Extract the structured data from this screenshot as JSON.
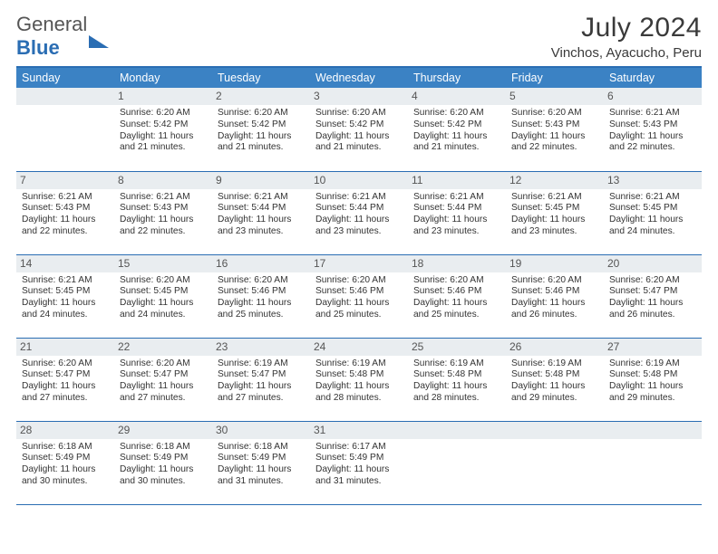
{
  "logo": {
    "word1": "General",
    "word2": "Blue"
  },
  "title": "July 2024",
  "location": "Vinchos, Ayacucho, Peru",
  "colors": {
    "header_bg": "#3b82c4",
    "divider": "#2a6db3",
    "daynum_bg": "#e9edf0",
    "text": "#333333",
    "logo_accent": "#2a6db3"
  },
  "daysOfWeek": [
    "Sunday",
    "Monday",
    "Tuesday",
    "Wednesday",
    "Thursday",
    "Friday",
    "Saturday"
  ],
  "weeks": [
    [
      null,
      {
        "n": "1",
        "sr": "6:20 AM",
        "ss": "5:42 PM",
        "dl": "11 hours and 21 minutes."
      },
      {
        "n": "2",
        "sr": "6:20 AM",
        "ss": "5:42 PM",
        "dl": "11 hours and 21 minutes."
      },
      {
        "n": "3",
        "sr": "6:20 AM",
        "ss": "5:42 PM",
        "dl": "11 hours and 21 minutes."
      },
      {
        "n": "4",
        "sr": "6:20 AM",
        "ss": "5:42 PM",
        "dl": "11 hours and 21 minutes."
      },
      {
        "n": "5",
        "sr": "6:20 AM",
        "ss": "5:43 PM",
        "dl": "11 hours and 22 minutes."
      },
      {
        "n": "6",
        "sr": "6:21 AM",
        "ss": "5:43 PM",
        "dl": "11 hours and 22 minutes."
      }
    ],
    [
      {
        "n": "7",
        "sr": "6:21 AM",
        "ss": "5:43 PM",
        "dl": "11 hours and 22 minutes."
      },
      {
        "n": "8",
        "sr": "6:21 AM",
        "ss": "5:43 PM",
        "dl": "11 hours and 22 minutes."
      },
      {
        "n": "9",
        "sr": "6:21 AM",
        "ss": "5:44 PM",
        "dl": "11 hours and 23 minutes."
      },
      {
        "n": "10",
        "sr": "6:21 AM",
        "ss": "5:44 PM",
        "dl": "11 hours and 23 minutes."
      },
      {
        "n": "11",
        "sr": "6:21 AM",
        "ss": "5:44 PM",
        "dl": "11 hours and 23 minutes."
      },
      {
        "n": "12",
        "sr": "6:21 AM",
        "ss": "5:45 PM",
        "dl": "11 hours and 23 minutes."
      },
      {
        "n": "13",
        "sr": "6:21 AM",
        "ss": "5:45 PM",
        "dl": "11 hours and 24 minutes."
      }
    ],
    [
      {
        "n": "14",
        "sr": "6:21 AM",
        "ss": "5:45 PM",
        "dl": "11 hours and 24 minutes."
      },
      {
        "n": "15",
        "sr": "6:20 AM",
        "ss": "5:45 PM",
        "dl": "11 hours and 24 minutes."
      },
      {
        "n": "16",
        "sr": "6:20 AM",
        "ss": "5:46 PM",
        "dl": "11 hours and 25 minutes."
      },
      {
        "n": "17",
        "sr": "6:20 AM",
        "ss": "5:46 PM",
        "dl": "11 hours and 25 minutes."
      },
      {
        "n": "18",
        "sr": "6:20 AM",
        "ss": "5:46 PM",
        "dl": "11 hours and 25 minutes."
      },
      {
        "n": "19",
        "sr": "6:20 AM",
        "ss": "5:46 PM",
        "dl": "11 hours and 26 minutes."
      },
      {
        "n": "20",
        "sr": "6:20 AM",
        "ss": "5:47 PM",
        "dl": "11 hours and 26 minutes."
      }
    ],
    [
      {
        "n": "21",
        "sr": "6:20 AM",
        "ss": "5:47 PM",
        "dl": "11 hours and 27 minutes."
      },
      {
        "n": "22",
        "sr": "6:20 AM",
        "ss": "5:47 PM",
        "dl": "11 hours and 27 minutes."
      },
      {
        "n": "23",
        "sr": "6:19 AM",
        "ss": "5:47 PM",
        "dl": "11 hours and 27 minutes."
      },
      {
        "n": "24",
        "sr": "6:19 AM",
        "ss": "5:48 PM",
        "dl": "11 hours and 28 minutes."
      },
      {
        "n": "25",
        "sr": "6:19 AM",
        "ss": "5:48 PM",
        "dl": "11 hours and 28 minutes."
      },
      {
        "n": "26",
        "sr": "6:19 AM",
        "ss": "5:48 PM",
        "dl": "11 hours and 29 minutes."
      },
      {
        "n": "27",
        "sr": "6:19 AM",
        "ss": "5:48 PM",
        "dl": "11 hours and 29 minutes."
      }
    ],
    [
      {
        "n": "28",
        "sr": "6:18 AM",
        "ss": "5:49 PM",
        "dl": "11 hours and 30 minutes."
      },
      {
        "n": "29",
        "sr": "6:18 AM",
        "ss": "5:49 PM",
        "dl": "11 hours and 30 minutes."
      },
      {
        "n": "30",
        "sr": "6:18 AM",
        "ss": "5:49 PM",
        "dl": "11 hours and 31 minutes."
      },
      {
        "n": "31",
        "sr": "6:17 AM",
        "ss": "5:49 PM",
        "dl": "11 hours and 31 minutes."
      },
      null,
      null,
      null
    ]
  ],
  "labels": {
    "sunrise": "Sunrise:",
    "sunset": "Sunset:",
    "daylight": "Daylight:"
  }
}
